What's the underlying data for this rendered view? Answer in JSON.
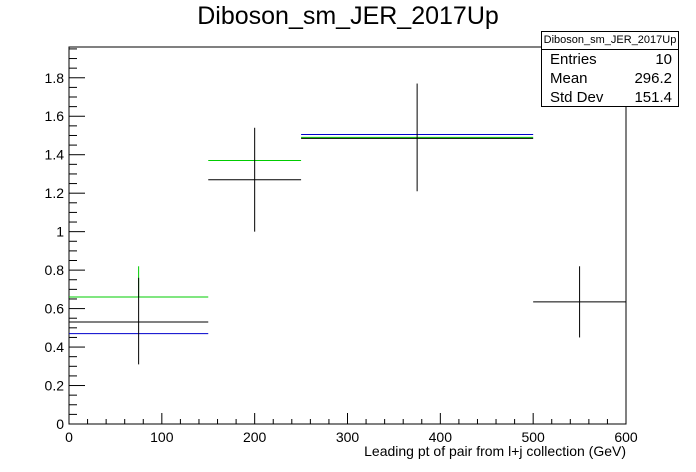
{
  "title": "Diboson_sm_JER_2017Up",
  "stats": {
    "name": "Diboson_sm_JER_2017Up",
    "rows": [
      {
        "label": "Entries",
        "value": "10"
      },
      {
        "label": "Mean",
        "value": "296.2"
      },
      {
        "label": "Std Dev",
        "value": "151.4"
      }
    ]
  },
  "chart_data": {
    "type": "line",
    "title": "Diboson_sm_JER_2017Up",
    "xlabel": "Leading pt of pair from l+j collection (GeV)",
    "ylabel": "",
    "xlim": [
      0,
      600
    ],
    "ylim": [
      0,
      1.96
    ],
    "x_ticks": [
      "0",
      "100",
      "200",
      "300",
      "400",
      "500",
      "600"
    ],
    "y_ticks": [
      "0",
      "0.2",
      "0.4",
      "0.6",
      "0.8",
      "1",
      "1.2",
      "1.4",
      "1.6",
      "1.8"
    ],
    "grid": false,
    "series": [
      {
        "color": "#0000cc",
        "bins": [
          {
            "x0": 0,
            "x1": 150,
            "y": 0.47
          },
          {
            "x0": 250,
            "x1": 500,
            "y": 1.505
          }
        ]
      },
      {
        "color": "#00cc00",
        "bins": [
          {
            "x0": 0,
            "x1": 150,
            "y": 0.66,
            "err_low": 0.66,
            "err_high": 0.82
          },
          {
            "x0": 150,
            "x1": 250,
            "y": 1.37
          },
          {
            "x0": 250,
            "x1": 500,
            "y": 1.49
          }
        ]
      },
      {
        "color": "#000000",
        "bins": [
          {
            "x0": 0,
            "x1": 150,
            "y": 0.53,
            "err_low": 0.31,
            "err_high": 0.76
          },
          {
            "x0": 150,
            "x1": 250,
            "y": 1.27,
            "err_low": 1.0,
            "err_high": 1.54
          },
          {
            "x0": 250,
            "x1": 500,
            "y": 1.485,
            "err_low": 1.21,
            "err_high": 1.77
          },
          {
            "x0": 500,
            "x1": 600,
            "y": 0.635,
            "err_low": 0.45,
            "err_high": 0.82
          }
        ]
      }
    ]
  }
}
